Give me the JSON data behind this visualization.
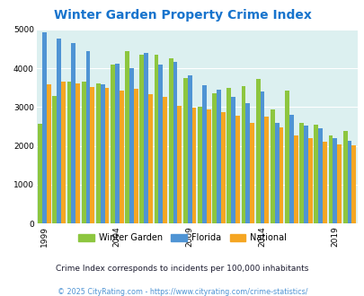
{
  "title": "Winter Garden Property Crime Index",
  "title_color": "#1874CD",
  "years": [
    1999,
    2000,
    2001,
    2002,
    2003,
    2004,
    2005,
    2006,
    2007,
    2008,
    2009,
    2010,
    2011,
    2012,
    2013,
    2014,
    2015,
    2016,
    2017,
    2018,
    2019,
    2020
  ],
  "winter_garden": [
    2580,
    3280,
    3650,
    3650,
    3620,
    4100,
    4450,
    4350,
    4350,
    4250,
    3750,
    3000,
    3350,
    3500,
    3550,
    3730,
    2930,
    3430,
    2600,
    2540,
    2280,
    2390
  ],
  "florida": [
    4920,
    4760,
    4660,
    4450,
    3600,
    4120,
    4010,
    4390,
    4100,
    4160,
    3820,
    3560,
    3460,
    3270,
    3100,
    3400,
    2590,
    2810,
    2520,
    2450,
    2210,
    2140
  ],
  "national": [
    3600,
    3650,
    3620,
    3510,
    3490,
    3430,
    3470,
    3330,
    3260,
    3030,
    2980,
    2950,
    2870,
    2780,
    2590,
    2750,
    2490,
    2260,
    2200,
    2100,
    2050,
    2010
  ],
  "wg_color": "#8DC63F",
  "fl_color": "#4F94D4",
  "nat_color": "#F5A623",
  "plot_bg": "#DCF0F0",
  "ylim": [
    0,
    5000
  ],
  "yticks": [
    0,
    1000,
    2000,
    3000,
    4000,
    5000
  ],
  "subtitle": "Crime Index corresponds to incidents per 100,000 inhabitants",
  "footnote": "© 2025 CityRating.com - https://www.cityrating.com/crime-statistics/",
  "subtitle_color": "#1a1a2e",
  "footnote_color": "#4F94D4",
  "xtick_years": [
    1999,
    2004,
    2009,
    2014,
    2019
  ],
  "legend_labels": [
    "Winter Garden",
    "Florida",
    "National"
  ]
}
